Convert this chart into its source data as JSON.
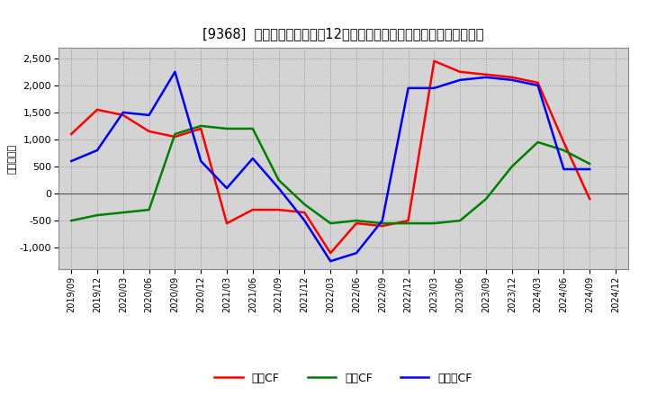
{
  "title": "[9368]  キャッシュフローの12か月移動合計の対前年同期増減額の推移",
  "ylabel": "（百万円）",
  "x_labels": [
    "2019/09",
    "2019/12",
    "2020/03",
    "2020/06",
    "2020/09",
    "2020/12",
    "2021/03",
    "2021/06",
    "2021/09",
    "2021/12",
    "2022/03",
    "2022/06",
    "2022/09",
    "2022/12",
    "2023/03",
    "2023/06",
    "2023/09",
    "2023/12",
    "2024/03",
    "2024/06",
    "2024/09",
    "2024/12"
  ],
  "operating_cf": [
    1100,
    1550,
    1450,
    1150,
    1050,
    1200,
    -550,
    -300,
    -300,
    -350,
    -1100,
    -550,
    -600,
    -500,
    2450,
    2250,
    2200,
    2150,
    2050,
    950,
    -100,
    null
  ],
  "investing_cf": [
    -500,
    -400,
    -350,
    -300,
    1100,
    1250,
    1200,
    1200,
    250,
    -200,
    -550,
    -500,
    -550,
    -550,
    -550,
    -500,
    -100,
    500,
    950,
    800,
    550,
    null
  ],
  "free_cf": [
    600,
    800,
    1500,
    1450,
    2250,
    600,
    100,
    650,
    100,
    -500,
    -1250,
    -1100,
    -500,
    1950,
    1950,
    2100,
    2150,
    2100,
    2000,
    450,
    450,
    null
  ],
  "operating_color": "#ff0000",
  "investing_color": "#008000",
  "free_color": "#0000ff",
  "ylim": [
    -1400,
    2700
  ],
  "yticks": [
    -1000,
    -500,
    0,
    500,
    1000,
    1500,
    2000,
    2500
  ],
  "plot_bg_color": "#d4d4d4",
  "fig_bg_color": "#ffffff",
  "grid_color": "#aaaaaa",
  "title_fontsize": 10.5,
  "line_width": 1.8
}
